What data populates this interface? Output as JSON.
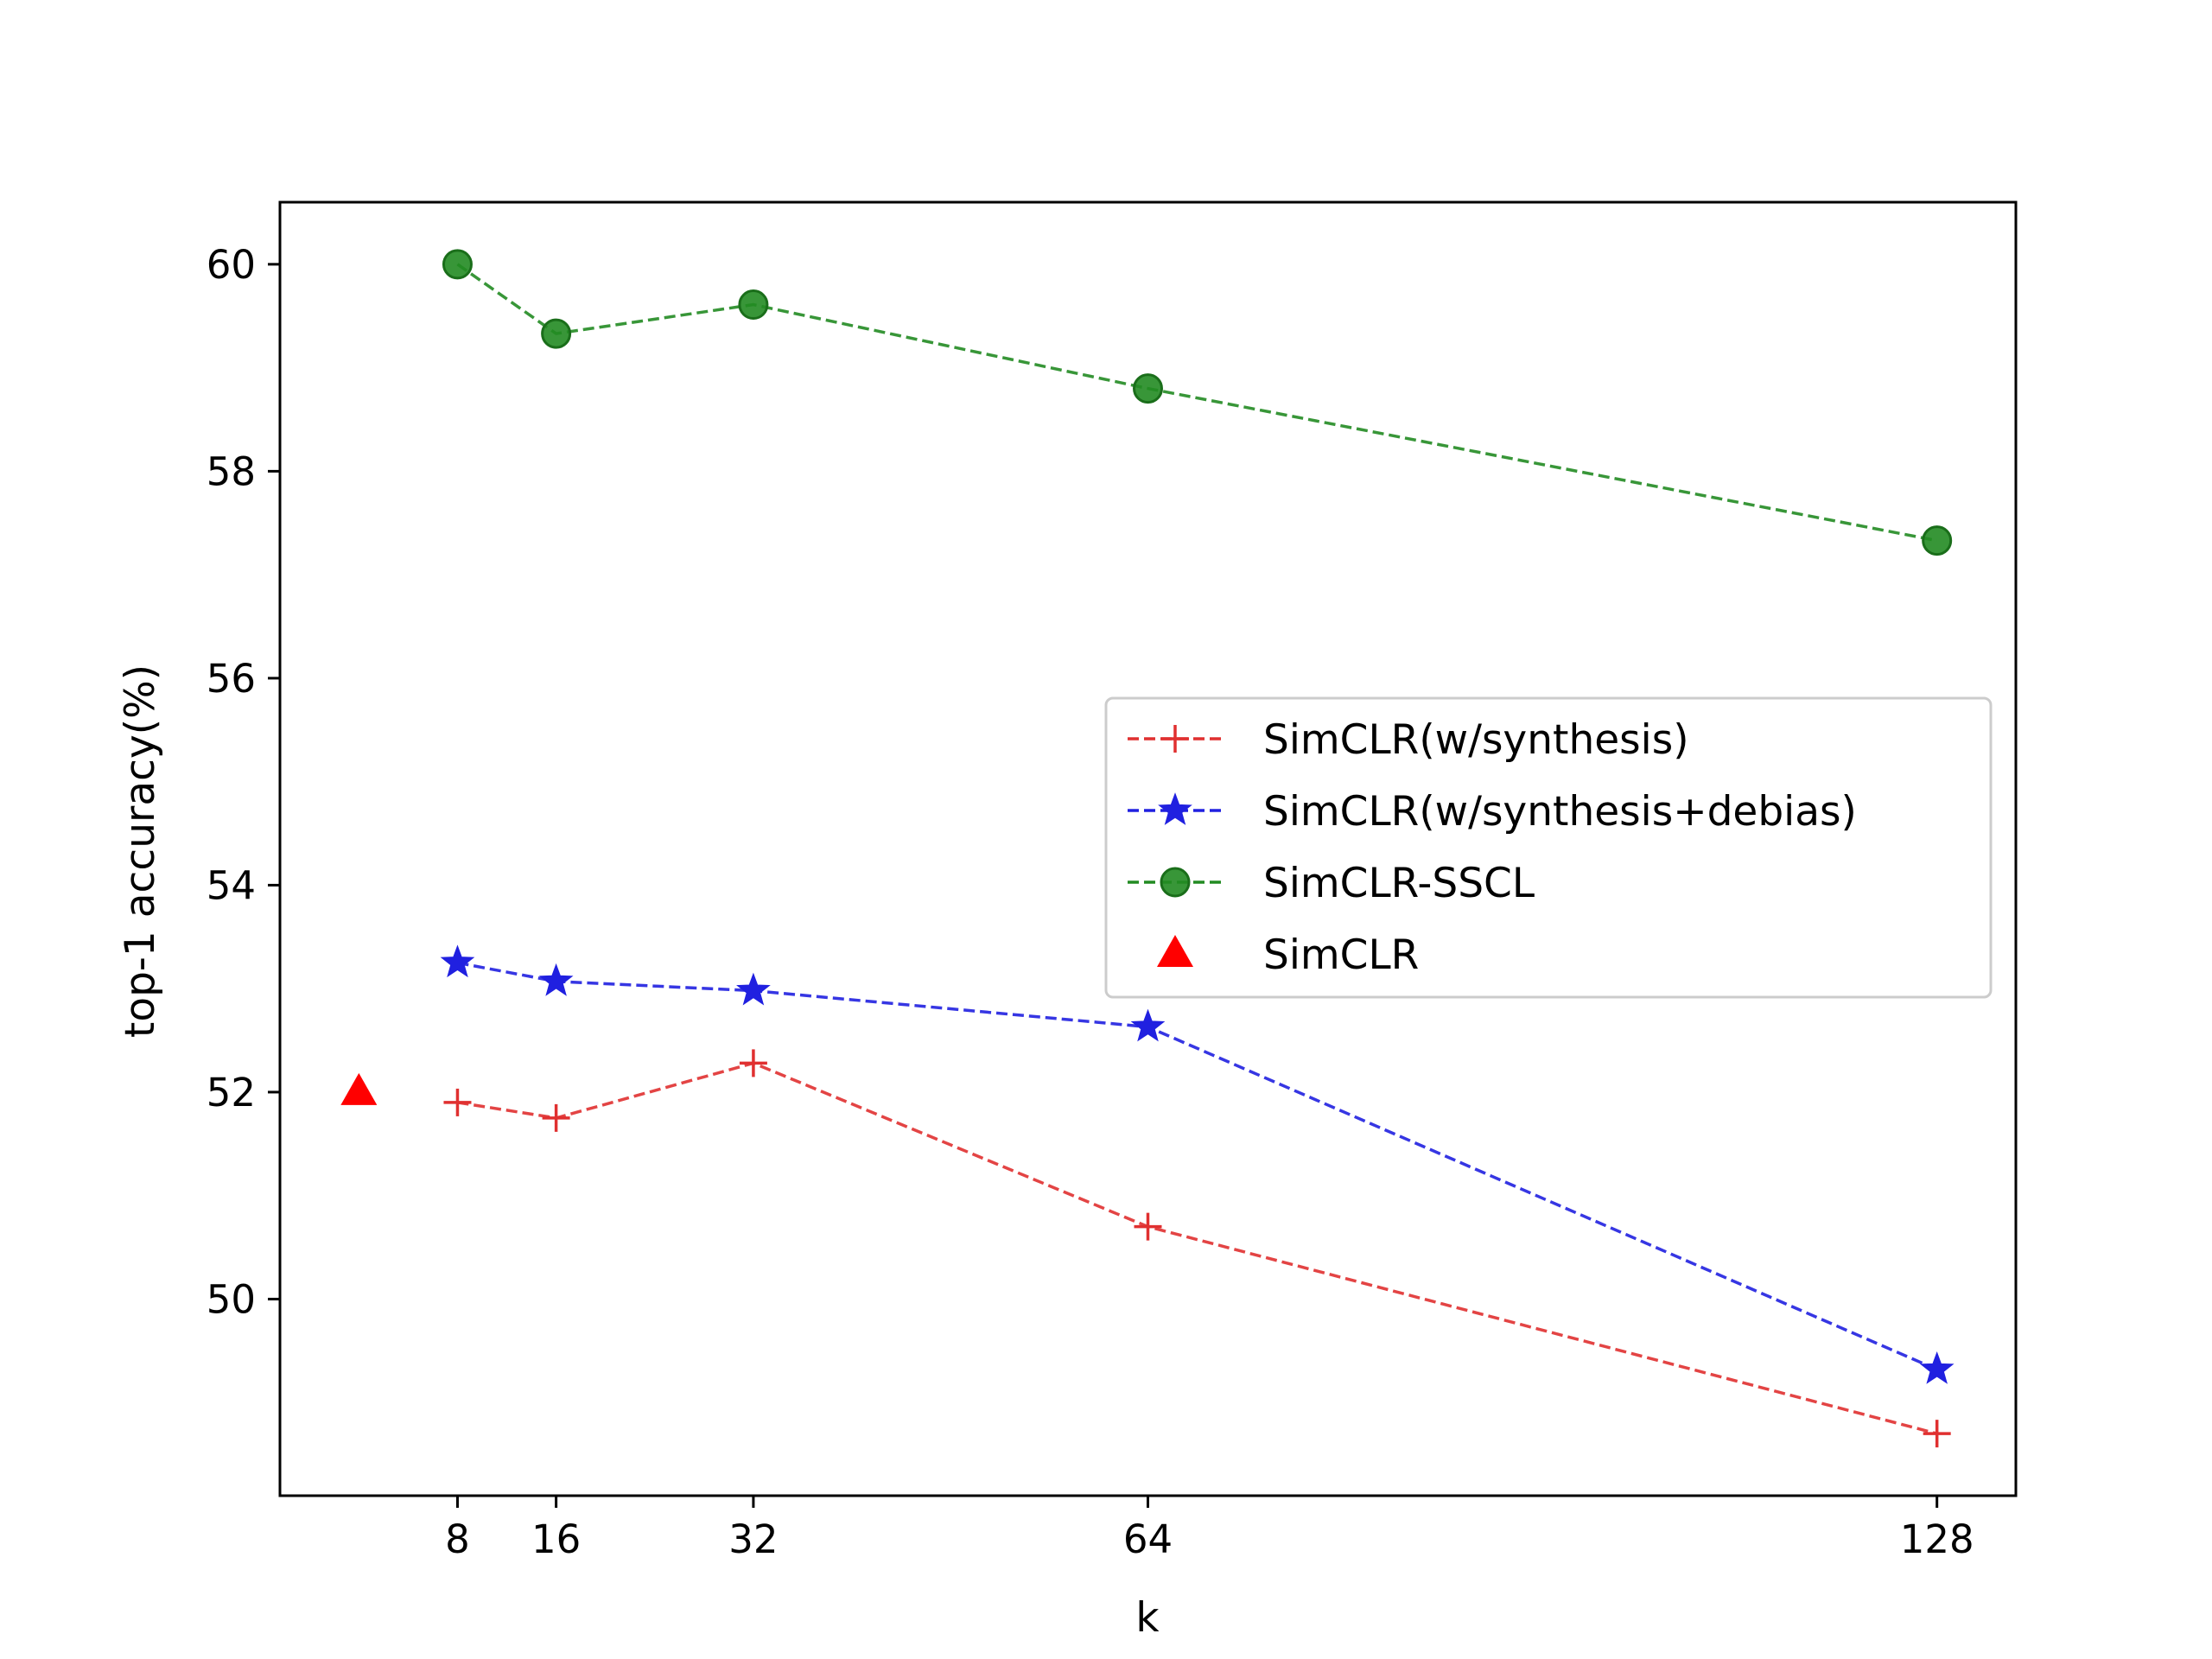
{
  "chart_data": {
    "type": "line",
    "title": "",
    "xlabel": "k",
    "ylabel": "top-1 accuracy(%)",
    "x": [
      8,
      16,
      32,
      64,
      128
    ],
    "x_ticks": [
      8,
      16,
      32,
      64,
      128
    ],
    "xlim": [
      -6.4,
      134.4
    ],
    "ylim": [
      48.1,
      60.6
    ],
    "y_ticks": [
      50,
      52,
      54,
      56,
      58,
      60
    ],
    "grid": false,
    "legend_position": "center-right",
    "series": [
      {
        "name": "SimCLR(w/synthesis)",
        "color": "#e03030",
        "marker": "plus",
        "line": "dashed",
        "values": [
          51.9,
          51.75,
          52.28,
          50.7,
          48.7
        ]
      },
      {
        "name": "SimCLR(w/synthesis+debias)",
        "color": "#2020e0",
        "marker": "star",
        "line": "dashed",
        "values": [
          53.25,
          53.07,
          52.98,
          52.63,
          49.32
        ]
      },
      {
        "name": "SimCLR-SSCL",
        "color": "#228b22",
        "marker": "circle",
        "line": "dashed",
        "values": [
          60.0,
          59.33,
          59.61,
          58.8,
          57.33
        ]
      }
    ],
    "baseline": {
      "name": "SimCLR",
      "color": "#ff0000",
      "marker": "triangle",
      "x": 0,
      "value": 52.0
    }
  }
}
